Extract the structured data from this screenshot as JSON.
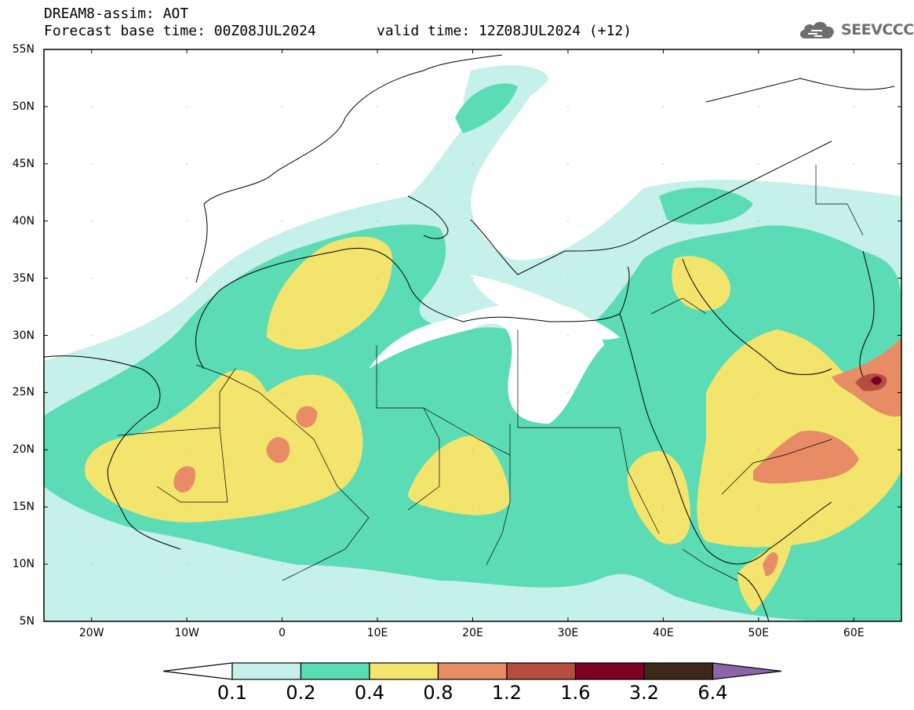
{
  "header": {
    "title": "DREAM8-assim: AOT",
    "base_time": "Forecast base time: 00Z08JUL2024",
    "valid_time": "valid time: 12Z08JUL2024 (+12)"
  },
  "logo": {
    "text": "SEEVCCC",
    "icon": "cloud-icon"
  },
  "map": {
    "lat_labels": [
      "55N",
      "50N",
      "45N",
      "40N",
      "35N",
      "30N",
      "25N",
      "20N",
      "15N",
      "10N",
      "5N"
    ],
    "lon_labels": [
      "20W",
      "10W",
      "0",
      "10E",
      "20E",
      "30E",
      "40E",
      "50E",
      "60E"
    ],
    "lon_range": [
      -25,
      65
    ],
    "lat_range": [
      5,
      55
    ]
  },
  "colorbar": {
    "labels": [
      "0.1",
      "0.2",
      "0.4",
      "0.8",
      "1.2",
      "1.6",
      "3.2",
      "6.4"
    ],
    "colors": [
      "#ffffff",
      "#c6f0ea",
      "#5cdcb4",
      "#f3e46e",
      "#e88c66",
      "#b54e3e",
      "#7d0024",
      "#3e2818",
      "#8c64a8"
    ]
  }
}
